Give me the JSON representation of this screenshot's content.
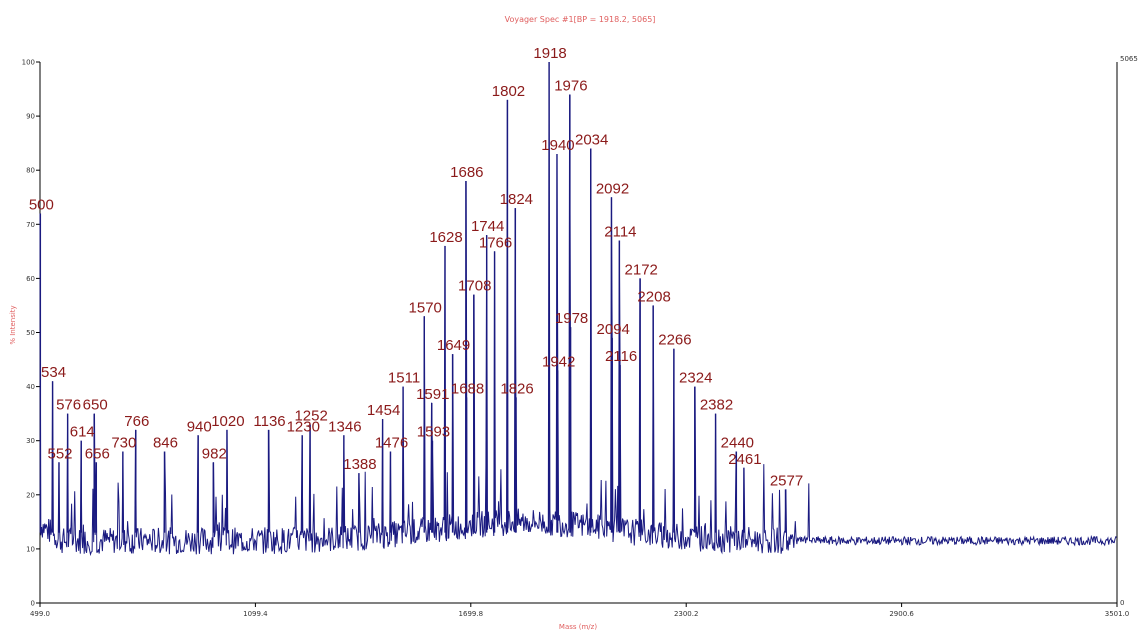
{
  "chart_data": {
    "type": "line",
    "title": "Voyager Spec #1[BP = 1918.2, 5065]",
    "xlabel": "Mass (m/z)",
    "ylabel": "% Intensity",
    "xlim": [
      499.0,
      3501.0
    ],
    "ylim": [
      0,
      100
    ],
    "x_ticks": [
      "499.0",
      "1099.4",
      "1699.8",
      "2300.2",
      "2900.6",
      "3501.0"
    ],
    "y_ticks": [
      "0",
      "10",
      "20",
      "30",
      "40",
      "50",
      "60",
      "70",
      "80",
      "90",
      "100"
    ],
    "right_axis_ticks": {
      "top": "5065",
      "bottom": "0"
    },
    "colors": {
      "series": "#1a1a80",
      "peak_labels": "#8b1a1a",
      "title": "#e06060"
    },
    "labeled_peaks": [
      {
        "label": "500",
        "x": 500,
        "y": 72
      },
      {
        "label": "534",
        "x": 534,
        "y": 41
      },
      {
        "label": "552",
        "x": 552,
        "y": 26
      },
      {
        "label": "576",
        "x": 576,
        "y": 35
      },
      {
        "label": "614",
        "x": 614,
        "y": 30
      },
      {
        "label": "650",
        "x": 650,
        "y": 35
      },
      {
        "label": "656",
        "x": 656,
        "y": 26
      },
      {
        "label": "730",
        "x": 730,
        "y": 28
      },
      {
        "label": "766",
        "x": 766,
        "y": 32
      },
      {
        "label": "846",
        "x": 846,
        "y": 28
      },
      {
        "label": "940",
        "x": 940,
        "y": 31
      },
      {
        "label": "982",
        "x": 982,
        "y": 26
      },
      {
        "label": "1020",
        "x": 1020,
        "y": 32
      },
      {
        "label": "1136",
        "x": 1136,
        "y": 32
      },
      {
        "label": "1230",
        "x": 1230,
        "y": 31
      },
      {
        "label": "1252",
        "x": 1252,
        "y": 33
      },
      {
        "label": "1346",
        "x": 1346,
        "y": 31
      },
      {
        "label": "1388",
        "x": 1388,
        "y": 24
      },
      {
        "label": "1454",
        "x": 1454,
        "y": 34
      },
      {
        "label": "1476",
        "x": 1476,
        "y": 28
      },
      {
        "label": "1511",
        "x": 1511,
        "y": 40
      },
      {
        "label": "1570",
        "x": 1570,
        "y": 53
      },
      {
        "label": "1591",
        "x": 1591,
        "y": 37
      },
      {
        "label": "1593",
        "x": 1593,
        "y": 30
      },
      {
        "label": "1628",
        "x": 1628,
        "y": 66
      },
      {
        "label": "1649",
        "x": 1649,
        "y": 46
      },
      {
        "label": "1686",
        "x": 1686,
        "y": 78
      },
      {
        "label": "1688",
        "x": 1688,
        "y": 38
      },
      {
        "label": "1708",
        "x": 1708,
        "y": 57
      },
      {
        "label": "1744",
        "x": 1744,
        "y": 68
      },
      {
        "label": "1766",
        "x": 1766,
        "y": 65
      },
      {
        "label": "1802",
        "x": 1802,
        "y": 93
      },
      {
        "label": "1824",
        "x": 1824,
        "y": 73
      },
      {
        "label": "1826",
        "x": 1826,
        "y": 38
      },
      {
        "label": "1918",
        "x": 1918,
        "y": 100
      },
      {
        "label": "1940",
        "x": 1940,
        "y": 83
      },
      {
        "label": "1942",
        "x": 1942,
        "y": 43
      },
      {
        "label": "1976",
        "x": 1976,
        "y": 94
      },
      {
        "label": "1978",
        "x": 1978,
        "y": 51
      },
      {
        "label": "2034",
        "x": 2034,
        "y": 84
      },
      {
        "label": "2094",
        "x": 2094,
        "y": 49
      },
      {
        "label": "2092",
        "x": 2092,
        "y": 75
      },
      {
        "label": "2116",
        "x": 2116,
        "y": 44
      },
      {
        "label": "2114",
        "x": 2114,
        "y": 67
      },
      {
        "label": "2172",
        "x": 2172,
        "y": 60
      },
      {
        "label": "2208",
        "x": 2208,
        "y": 55
      },
      {
        "label": "2266",
        "x": 2266,
        "y": 47
      },
      {
        "label": "2324",
        "x": 2324,
        "y": 40
      },
      {
        "label": "2382",
        "x": 2382,
        "y": 35
      },
      {
        "label": "2440",
        "x": 2440,
        "y": 28
      },
      {
        "label": "2461",
        "x": 2461,
        "y": 25
      },
      {
        "label": "2577",
        "x": 2577,
        "y": 21
      }
    ],
    "grid": false,
    "legend": "none"
  }
}
